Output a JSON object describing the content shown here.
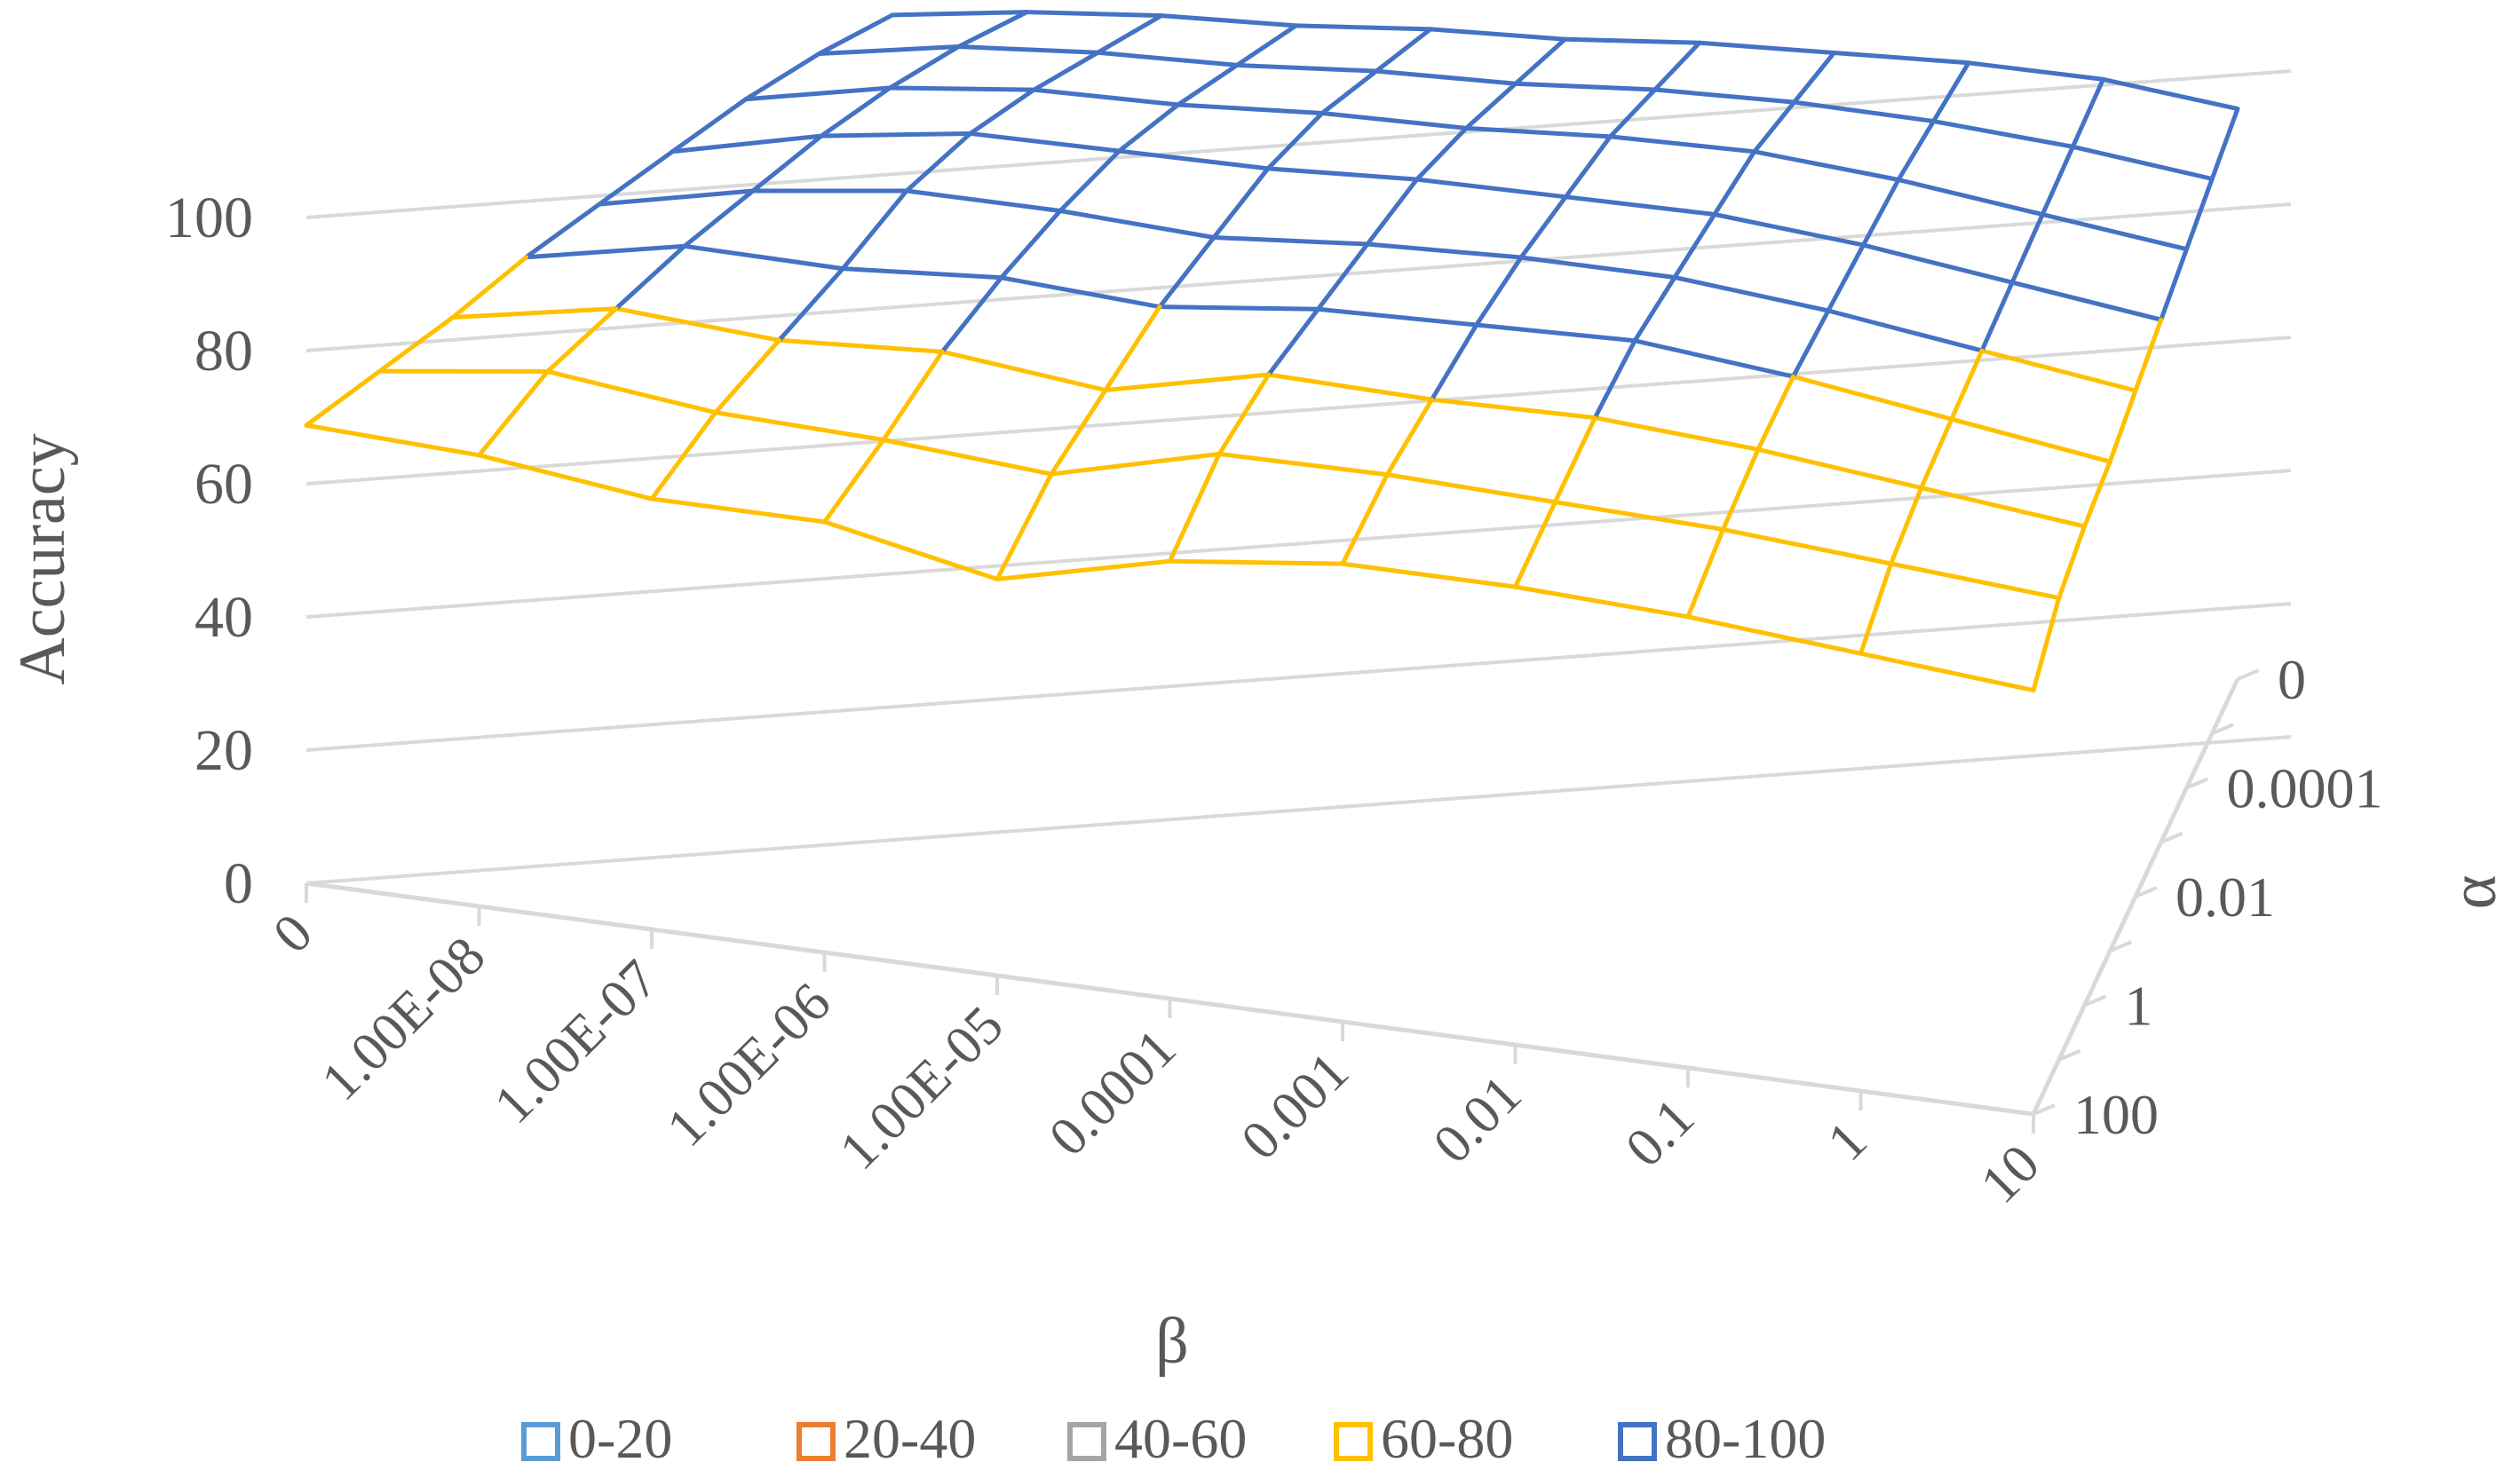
{
  "chart_data": {
    "type": "surface-wireframe",
    "zlabel": "Accuracy",
    "xlabel": "β",
    "ylabel": "α",
    "zlim": [
      0,
      100
    ],
    "z_ticks": [
      "0",
      "20",
      "40",
      "60",
      "80",
      "100"
    ],
    "beta_ticks": [
      "0",
      "1.00E-08",
      "1.00E-07",
      "1.00E-06",
      "1.00E-05",
      "0.0001",
      "0.001",
      "0.01",
      "0.1",
      "1",
      "10"
    ],
    "alpha_ticks": [
      "0",
      "0.0001",
      "0.01",
      "1",
      "100"
    ],
    "alpha_levels": [
      "0",
      "1.00E-05",
      "0.0001",
      "0.001",
      "0.01",
      "0.1",
      "1",
      "10",
      "100"
    ],
    "values": [
      [
        97,
        98,
        98,
        97,
        97,
        96,
        96,
        95,
        94,
        92,
        88
      ],
      [
        95,
        97,
        97,
        96,
        96,
        95,
        95,
        94,
        92,
        89,
        85
      ],
      [
        92,
        95,
        96,
        95,
        95,
        94,
        94,
        93,
        90,
        86,
        82
      ],
      [
        88,
        92,
        94,
        93,
        92,
        92,
        91,
        90,
        87,
        83,
        79
      ],
      [
        84,
        88,
        90,
        89,
        87,
        88,
        88,
        87,
        84,
        80,
        76
      ],
      [
        80,
        84,
        83,
        84,
        82,
        84,
        84,
        84,
        81,
        77,
        73
      ],
      [
        75,
        79,
        77,
        78,
        75,
        80,
        79,
        79,
        77,
        74,
        71
      ],
      [
        71,
        74,
        71,
        70,
        68,
        74,
        74,
        73,
        72,
        70,
        68
      ],
      [
        67,
        66,
        63,
        63,
        58,
        64,
        67,
        67,
        66,
        64,
        62
      ]
    ],
    "color_bands": [
      {
        "label": "0-20",
        "color": "#5b9bd5"
      },
      {
        "label": "20-40",
        "color": "#ed7d31"
      },
      {
        "label": "40-60",
        "color": "#a5a5a5"
      },
      {
        "label": "60-80",
        "color": "#ffc000"
      },
      {
        "label": "80-100",
        "color": "#4472c4"
      }
    ],
    "legend_position": "bottom"
  }
}
